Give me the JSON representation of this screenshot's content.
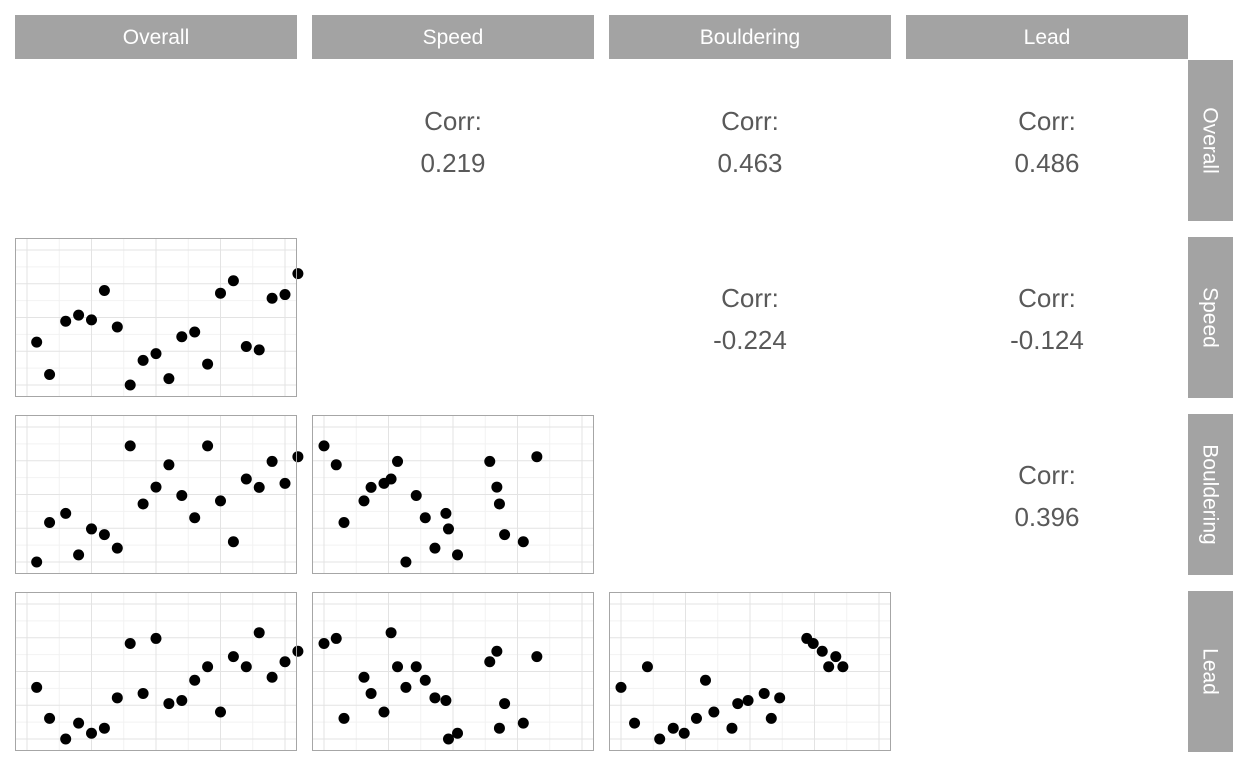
{
  "chart_data": {
    "type": "scatter",
    "variables": [
      "Overall",
      "Speed",
      "Bouldering",
      "Lead"
    ],
    "axis_ticks": {
      "Overall": [
        0,
        1,
        2,
        3,
        4
      ],
      "Speed": [
        0,
        1,
        2,
        3,
        4
      ],
      "Bouldering": [
        0,
        1,
        2,
        3,
        4
      ],
      "Lead": [
        0,
        1,
        2,
        3,
        4
      ]
    },
    "corr_label": "Corr:",
    "correlations": [
      {
        "row": "Overall",
        "col": "Speed",
        "value": "0.219"
      },
      {
        "row": "Overall",
        "col": "Bouldering",
        "value": "0.463"
      },
      {
        "row": "Overall",
        "col": "Lead",
        "value": "0.486"
      },
      {
        "row": "Speed",
        "col": "Bouldering",
        "value": "-0.224"
      },
      {
        "row": "Speed",
        "col": "Lead",
        "value": "-0.124"
      },
      {
        "row": "Bouldering",
        "col": "Lead",
        "value": "0.396"
      }
    ],
    "scatter_panels": [
      {
        "x": "Overall",
        "y": "Speed",
        "points": [
          [
            0.15,
            1.27
          ],
          [
            0.35,
            0.31
          ],
          [
            0.6,
            1.89
          ],
          [
            0.8,
            2.07
          ],
          [
            1.0,
            1.93
          ],
          [
            1.2,
            2.8
          ],
          [
            1.4,
            1.72
          ],
          [
            1.6,
            0.0
          ],
          [
            1.8,
            0.73
          ],
          [
            2.0,
            0.93
          ],
          [
            2.2,
            0.19
          ],
          [
            2.4,
            1.43
          ],
          [
            2.6,
            1.57
          ],
          [
            2.8,
            0.62
          ],
          [
            3.0,
            2.72
          ],
          [
            3.2,
            3.09
          ],
          [
            3.4,
            1.14
          ],
          [
            3.6,
            1.04
          ],
          [
            3.8,
            2.57
          ],
          [
            4.0,
            2.68
          ],
          [
            4.2,
            3.3
          ]
        ]
      },
      {
        "x": "Overall",
        "y": "Bouldering",
        "points": [
          [
            0.15,
            0.0
          ],
          [
            0.35,
            1.17
          ],
          [
            0.6,
            1.44
          ],
          [
            0.8,
            0.21
          ],
          [
            1.0,
            0.98
          ],
          [
            1.2,
            0.81
          ],
          [
            1.4,
            0.41
          ],
          [
            1.6,
            3.44
          ],
          [
            1.8,
            1.72
          ],
          [
            2.0,
            2.22
          ],
          [
            2.2,
            2.88
          ],
          [
            2.4,
            1.97
          ],
          [
            2.6,
            1.31
          ],
          [
            2.8,
            3.44
          ],
          [
            3.0,
            1.81
          ],
          [
            3.2,
            0.6
          ],
          [
            3.4,
            2.46
          ],
          [
            3.6,
            2.21
          ],
          [
            3.8,
            2.98
          ],
          [
            4.0,
            2.33
          ],
          [
            4.2,
            3.12
          ]
        ]
      },
      {
        "x": "Overall",
        "y": "Lead",
        "points": [
          [
            0.15,
            1.53
          ],
          [
            0.35,
            0.61
          ],
          [
            0.6,
            0.0
          ],
          [
            0.8,
            0.47
          ],
          [
            1.0,
            0.17
          ],
          [
            1.2,
            0.32
          ],
          [
            1.4,
            1.22
          ],
          [
            1.6,
            2.83
          ],
          [
            1.8,
            1.35
          ],
          [
            2.0,
            2.98
          ],
          [
            2.2,
            1.05
          ],
          [
            2.4,
            1.14
          ],
          [
            2.6,
            1.74
          ],
          [
            2.8,
            2.14
          ],
          [
            3.0,
            0.8
          ],
          [
            3.2,
            2.44
          ],
          [
            3.4,
            2.14
          ],
          [
            3.6,
            3.15
          ],
          [
            3.8,
            1.83
          ],
          [
            4.0,
            2.29
          ],
          [
            4.2,
            2.6
          ]
        ]
      },
      {
        "x": "Speed",
        "y": "Bouldering",
        "points": [
          [
            0.0,
            3.44
          ],
          [
            0.19,
            2.88
          ],
          [
            0.31,
            1.17
          ],
          [
            0.62,
            1.81
          ],
          [
            0.73,
            2.21
          ],
          [
            0.93,
            2.33
          ],
          [
            1.04,
            2.46
          ],
          [
            1.14,
            2.98
          ],
          [
            1.27,
            0.0
          ],
          [
            1.43,
            1.97
          ],
          [
            1.57,
            1.31
          ],
          [
            1.72,
            0.41
          ],
          [
            1.89,
            1.44
          ],
          [
            1.93,
            0.98
          ],
          [
            2.07,
            0.21
          ],
          [
            2.57,
            2.98
          ],
          [
            2.68,
            2.22
          ],
          [
            2.72,
            1.72
          ],
          [
            2.8,
            0.81
          ],
          [
            3.09,
            0.6
          ],
          [
            3.3,
            3.12
          ]
        ]
      },
      {
        "x": "Speed",
        "y": "Lead",
        "points": [
          [
            0.0,
            2.83
          ],
          [
            0.19,
            2.98
          ],
          [
            0.31,
            0.61
          ],
          [
            0.62,
            1.83
          ],
          [
            0.73,
            1.35
          ],
          [
            0.93,
            0.8
          ],
          [
            1.04,
            3.15
          ],
          [
            1.14,
            2.14
          ],
          [
            1.27,
            1.53
          ],
          [
            1.43,
            2.14
          ],
          [
            1.57,
            1.74
          ],
          [
            1.72,
            1.22
          ],
          [
            1.89,
            1.14
          ],
          [
            1.93,
            0.0
          ],
          [
            2.07,
            0.17
          ],
          [
            2.57,
            2.29
          ],
          [
            2.68,
            2.6
          ],
          [
            2.72,
            0.32
          ],
          [
            2.8,
            1.05
          ],
          [
            3.09,
            0.47
          ],
          [
            3.3,
            2.44
          ]
        ]
      },
      {
        "x": "Bouldering",
        "y": "Lead",
        "points": [
          [
            0.0,
            1.53
          ],
          [
            0.21,
            0.47
          ],
          [
            0.41,
            2.14
          ],
          [
            0.6,
            0.0
          ],
          [
            0.81,
            0.32
          ],
          [
            0.98,
            0.17
          ],
          [
            1.17,
            0.61
          ],
          [
            1.31,
            1.74
          ],
          [
            1.44,
            0.8
          ],
          [
            1.72,
            0.32
          ],
          [
            1.81,
            1.05
          ],
          [
            1.97,
            1.14
          ],
          [
            2.22,
            1.35
          ],
          [
            2.33,
            0.61
          ],
          [
            2.46,
            1.22
          ],
          [
            2.88,
            2.98
          ],
          [
            2.98,
            2.83
          ],
          [
            3.12,
            2.6
          ],
          [
            3.22,
            2.14
          ],
          [
            3.33,
            2.44
          ],
          [
            3.44,
            2.14
          ]
        ]
      }
    ],
    "grid": true,
    "layout": "scatterplot-matrix"
  }
}
